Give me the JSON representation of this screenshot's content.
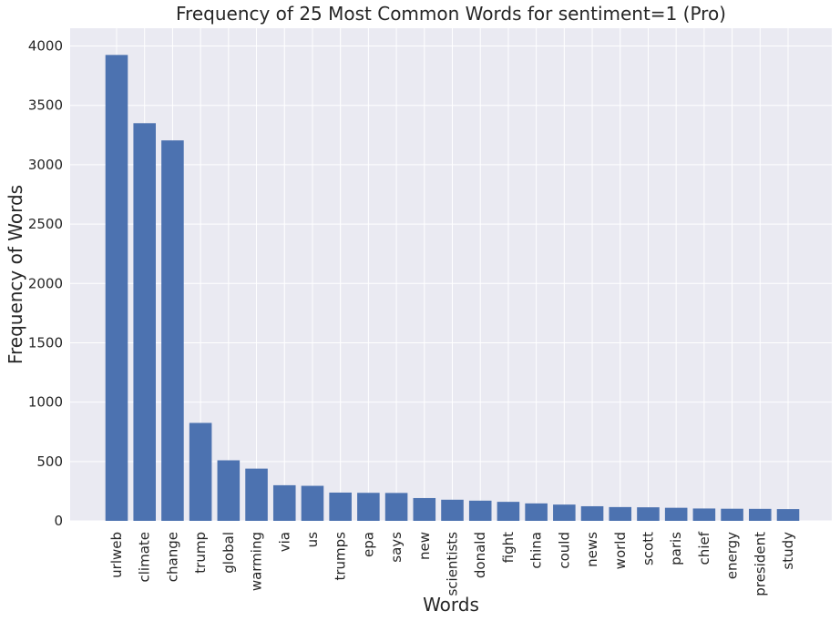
{
  "chart_data": {
    "type": "bar",
    "title": "Frequency of 25 Most Common Words for sentiment=1 (Pro)",
    "xlabel": "Words",
    "ylabel": "Frequency of Words",
    "categories": [
      "urlweb",
      "climate",
      "change",
      "trump",
      "global",
      "warming",
      "via",
      "us",
      "trumps",
      "epa",
      "says",
      "new",
      "scientists",
      "donald",
      "fight",
      "china",
      "could",
      "news",
      "world",
      "scott",
      "paris",
      "chief",
      "energy",
      "president",
      "study"
    ],
    "values": [
      3925,
      3350,
      3205,
      825,
      510,
      440,
      300,
      295,
      238,
      236,
      235,
      192,
      178,
      170,
      160,
      147,
      137,
      123,
      116,
      114,
      110,
      104,
      102,
      101,
      99
    ],
    "ylim": [
      0,
      4150
    ],
    "yticks": [
      0,
      500,
      1000,
      1500,
      2000,
      2500,
      3000,
      3500,
      4000
    ],
    "grid": true,
    "legend": "none",
    "colors": {
      "bar": "#4c72b0",
      "plot_background": "#eaeaf2",
      "grid": "#ffffff",
      "text": "#262626"
    }
  }
}
